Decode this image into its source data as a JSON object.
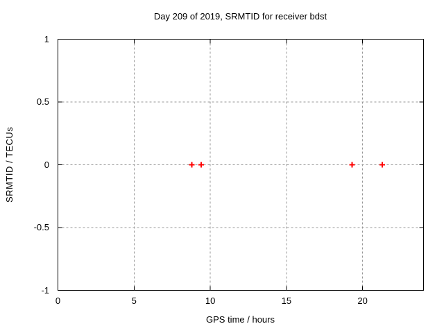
{
  "chart_data": {
    "type": "scatter",
    "title": "Day 209 of 2019, SRMTID for receiver bdst",
    "xlabel": "GPS time / hours",
    "ylabel": "SRMTID / TECUs",
    "xlim": [
      0,
      24
    ],
    "ylim": [
      -1,
      1
    ],
    "xticks": [
      0,
      5,
      10,
      15,
      20
    ],
    "yticks": [
      -1,
      -0.5,
      0,
      0.5,
      1
    ],
    "xtick_labels": [
      "0",
      "5",
      "10",
      "15",
      "20"
    ],
    "ytick_labels": [
      "-1",
      "-0.5",
      "0",
      "0.5",
      "1"
    ],
    "grid": true,
    "legend": false,
    "series": [
      {
        "name": "SRMTID",
        "marker": "plus",
        "color": "#ff0000",
        "points": [
          {
            "x": 8.8,
            "y": 0
          },
          {
            "x": 9.4,
            "y": 0
          },
          {
            "x": 19.3,
            "y": 0
          },
          {
            "x": 21.3,
            "y": 0
          }
        ]
      }
    ],
    "colors": {
      "background": "#ffffff",
      "border": "#000000",
      "grid": "#999999",
      "text": "#000000"
    }
  }
}
